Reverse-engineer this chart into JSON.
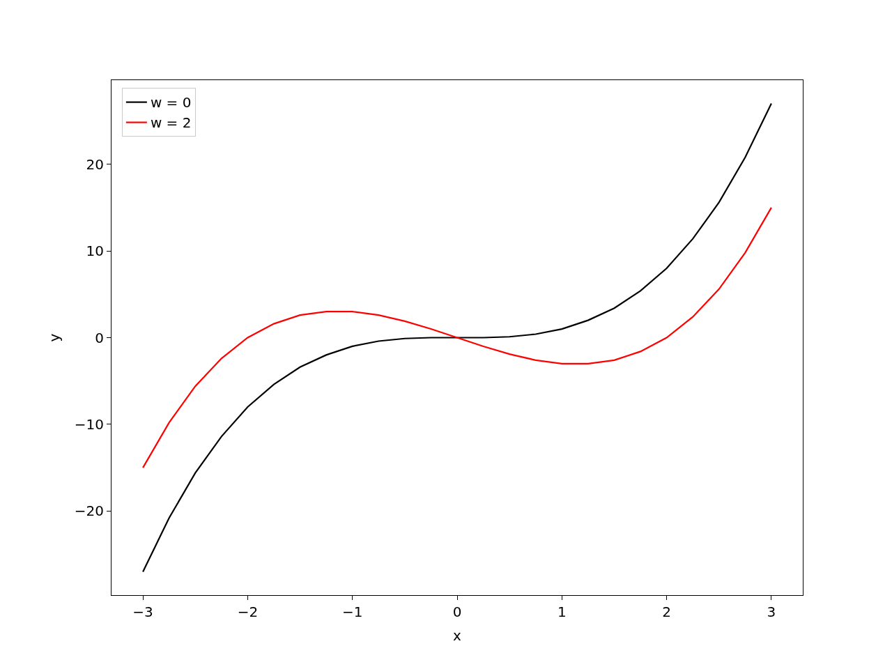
{
  "chart_data": {
    "type": "line",
    "xlabel": "x",
    "ylabel": "y",
    "x": [
      -3,
      -2.75,
      -2.5,
      -2.25,
      -2,
      -1.75,
      -1.5,
      -1.25,
      -1,
      -0.75,
      -0.5,
      -0.25,
      0,
      0.25,
      0.5,
      0.75,
      1,
      1.25,
      1.5,
      1.75,
      2,
      2.25,
      2.5,
      2.75,
      3
    ],
    "series": [
      {
        "name": "w = 0",
        "color": "#000000",
        "values": [
          -27,
          -20.8,
          -15.6,
          -11.4,
          -8,
          -5.4,
          -3.4,
          -2,
          -1,
          -0.4,
          -0.1,
          0,
          0,
          0,
          0.1,
          0.4,
          1,
          2,
          3.4,
          5.4,
          8,
          11.4,
          15.6,
          20.8,
          27
        ]
      },
      {
        "name": "w = 2",
        "color": "#ff0000",
        "values": [
          -15,
          -9.8,
          -5.6,
          -2.4,
          0,
          1.6,
          2.6,
          3,
          3,
          2.6,
          1.9,
          1,
          0,
          -1,
          -1.9,
          -2.6,
          -3,
          -3,
          -2.6,
          -1.6,
          0,
          2.4,
          5.6,
          9.8,
          15
        ]
      }
    ],
    "xlim": [
      -3.3,
      3.3
    ],
    "xticks": [
      {
        "value": -3,
        "label": "−3"
      },
      {
        "value": -2,
        "label": "−2"
      },
      {
        "value": -1,
        "label": "−1"
      },
      0,
      1,
      2,
      3
    ],
    "ylim": [
      -29.7,
      29.7
    ],
    "yticks": [
      {
        "value": -20,
        "label": "−20"
      },
      {
        "value": -10,
        "label": "−10"
      },
      0,
      10,
      20
    ],
    "legend": "top left",
    "line_style": "solid",
    "marker": "none"
  }
}
